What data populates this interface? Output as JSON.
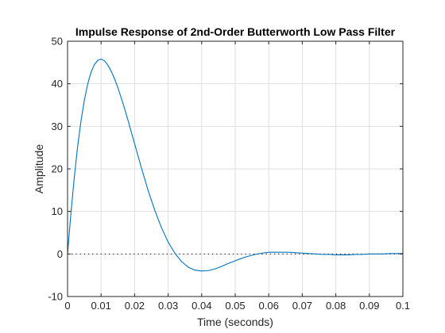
{
  "chart_data": {
    "type": "line",
    "title": "Impulse Response of 2nd-Order Butterworth Low Pass Filter",
    "xlabel": "Time (seconds)",
    "ylabel": "Amplitude",
    "xlim": [
      0,
      0.1
    ],
    "ylim": [
      -10,
      50
    ],
    "xticks": [
      "0",
      "0.01",
      "0.02",
      "0.03",
      "0.04",
      "0.05",
      "0.06",
      "0.07",
      "0.08",
      "0.09",
      "0.1"
    ],
    "yticks": [
      "-10",
      "0",
      "10",
      "20",
      "30",
      "40",
      "50"
    ],
    "grid": true,
    "series": [
      {
        "color": "#0072bd",
        "x": [
          0,
          0.001,
          0.002,
          0.003,
          0.004,
          0.005,
          0.006,
          0.007,
          0.008,
          0.009,
          0.01,
          0.011,
          0.012,
          0.013,
          0.014,
          0.015,
          0.016,
          0.017,
          0.018,
          0.019,
          0.02,
          0.022,
          0.024,
          0.026,
          0.028,
          0.03,
          0.032,
          0.034,
          0.036,
          0.038,
          0.04,
          0.042,
          0.044,
          0.046,
          0.048,
          0.05,
          0.052,
          0.054,
          0.056,
          0.058,
          0.06,
          0.062,
          0.064,
          0.066,
          0.068,
          0.07,
          0.072,
          0.074,
          0.076,
          0.078,
          0.08,
          0.082,
          0.084,
          0.086,
          0.088,
          0.09,
          0.092,
          0.094,
          0.096,
          0.098,
          0.1
        ],
        "values": [
          0,
          9.5,
          17.9,
          25.2,
          31.2,
          36.1,
          39.9,
          42.7,
          44.5,
          45.5,
          45.8,
          45.4,
          44.4,
          43.0,
          41.2,
          39.1,
          36.7,
          34.2,
          31.5,
          28.7,
          25.9,
          20.3,
          15.0,
          10.3,
          6.2,
          2.8,
          0.2,
          -1.8,
          -3.1,
          -3.8,
          -4.0,
          -3.9,
          -3.5,
          -2.9,
          -2.2,
          -1.6,
          -1.0,
          -0.5,
          -0.1,
          0.2,
          0.4,
          0.4,
          0.4,
          0.4,
          0.3,
          0.2,
          0.1,
          0.0,
          -0.1,
          -0.1,
          -0.2,
          -0.2,
          -0.2,
          -0.1,
          -0.1,
          0.0,
          0.0,
          0.0,
          0.1,
          0.1,
          0.1
        ]
      }
    ],
    "reference_line": {
      "y": 0,
      "style": "dotted",
      "color": "#000000"
    }
  }
}
